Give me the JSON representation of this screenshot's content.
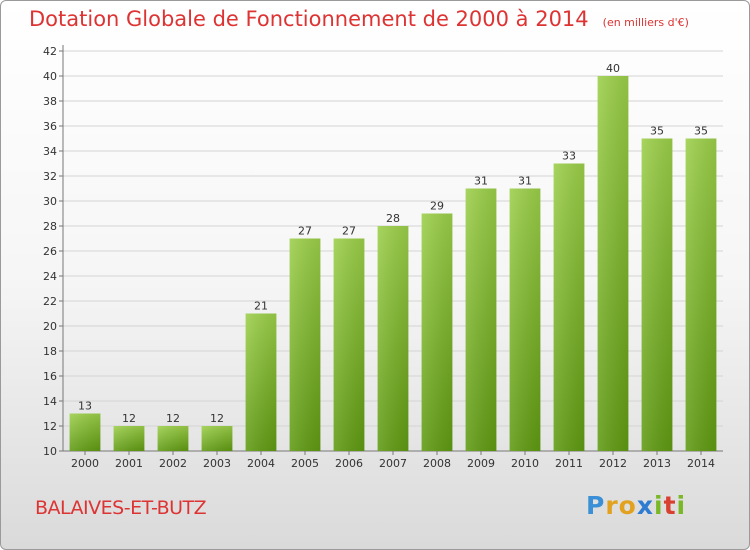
{
  "header": {
    "title": "Dotation Globale de Fonctionnement de 2000 à 2014",
    "unit": "(en milliers d'€)"
  },
  "footer": {
    "commune": "BALAIVES-ET-BUTZ",
    "logo_text": "Proxiti"
  },
  "colors": {
    "title": "#dd3333",
    "bar_top": "#9ccf4a",
    "bar_bottom": "#5f9a12"
  },
  "chart_data": {
    "type": "bar",
    "title": "Dotation Globale de Fonctionnement de 2000 à 2014",
    "subtitle": "(en milliers d'€)",
    "categories": [
      "2000",
      "2001",
      "2002",
      "2003",
      "2004",
      "2005",
      "2006",
      "2007",
      "2008",
      "2009",
      "2010",
      "2011",
      "2012",
      "2013",
      "2014"
    ],
    "values": [
      13,
      12,
      12,
      12,
      21,
      27,
      27,
      28,
      29,
      31,
      31,
      33,
      40,
      35,
      35
    ],
    "ylim": [
      10,
      42
    ],
    "yticks": [
      10,
      12,
      14,
      16,
      18,
      20,
      22,
      24,
      26,
      28,
      30,
      32,
      34,
      36,
      38,
      40,
      42
    ],
    "grid": true,
    "legend": "none"
  }
}
